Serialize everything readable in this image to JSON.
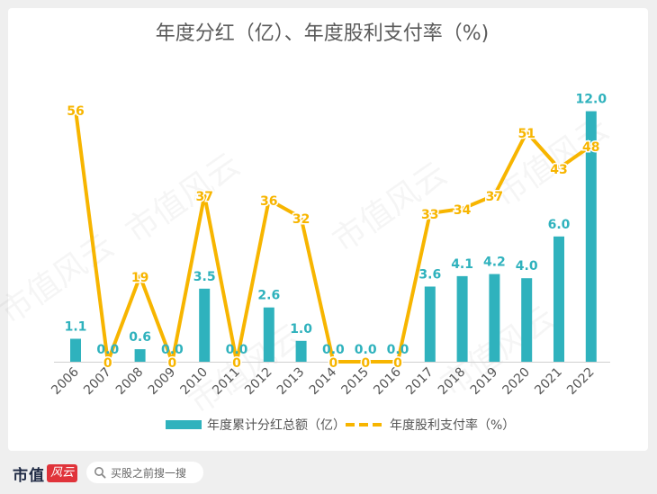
{
  "chart_data": {
    "type": "bar+line",
    "title": "年度分红（亿）、年度股利支付率（%)",
    "categories": [
      "2006",
      "2007",
      "2008",
      "2009",
      "2010",
      "2011",
      "2012",
      "2013",
      "2014",
      "2015",
      "2016",
      "2017",
      "2018",
      "2019",
      "2020",
      "2021",
      "2022"
    ],
    "series": [
      {
        "name": "年度累计分红总额（亿）",
        "type": "bar",
        "color": "#2fb2bd",
        "values": [
          1.1,
          0.0,
          0.6,
          0.0,
          3.5,
          0.0,
          2.6,
          1.0,
          0.0,
          0.0,
          0.0,
          3.6,
          4.1,
          4.2,
          4.0,
          6.0,
          12.0
        ],
        "labels": [
          "1.1",
          "0.0",
          "0.6",
          "0.0",
          "3.5",
          "0.0",
          "2.6",
          "1.0",
          "0.0",
          "0.0",
          "0.0",
          "3.6",
          "4.1",
          "4.2",
          "4.0",
          "6.0",
          "12.0"
        ]
      },
      {
        "name": "年度股利支付率（%）",
        "type": "line",
        "color": "#f7b500",
        "values": [
          56,
          0,
          19,
          0,
          37,
          0,
          36,
          32,
          0,
          0,
          0,
          33,
          34,
          37,
          51,
          43,
          48
        ],
        "labels": [
          "56",
          "0",
          "19",
          "0",
          "37",
          "0",
          "36",
          "32",
          "0",
          "0",
          "0",
          "33",
          "34",
          "37",
          "51",
          "43",
          "48"
        ]
      }
    ],
    "legend_position": "bottom",
    "grid": false
  },
  "watermark": "市值风云",
  "footer": {
    "logo_text": "市值",
    "logo_badge": "风云",
    "search_placeholder": "买股之前搜一搜"
  }
}
